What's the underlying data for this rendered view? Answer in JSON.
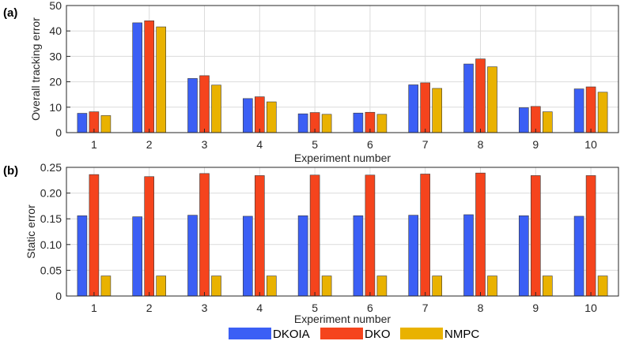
{
  "colors": {
    "DKOIA": "#3b5ff5",
    "DKO": "#f5441d",
    "NMPC": "#e9b200"
  },
  "legend": [
    "DKOIA",
    "DKO",
    "NMPC"
  ],
  "chart_data": [
    {
      "type": "bar",
      "panel_label": "(a)",
      "categories": [
        "1",
        "2",
        "3",
        "4",
        "5",
        "6",
        "7",
        "8",
        "9",
        "10"
      ],
      "series": [
        {
          "name": "DKOIA",
          "values": [
            7.6,
            43.2,
            21.3,
            13.4,
            7.4,
            7.7,
            18.8,
            27.0,
            9.8,
            17.2
          ]
        },
        {
          "name": "DKO",
          "values": [
            8.2,
            44.0,
            22.4,
            14.1,
            7.9,
            8.0,
            19.6,
            29.0,
            10.3,
            18.0
          ]
        },
        {
          "name": "NMPC",
          "values": [
            6.7,
            41.6,
            18.7,
            12.1,
            7.2,
            7.2,
            17.4,
            25.9,
            8.2,
            15.9
          ]
        }
      ],
      "xlabel": "Experiment number",
      "ylabel": "Overall tracking error",
      "ylim": [
        0,
        50
      ],
      "yticks": [
        0,
        10,
        20,
        30,
        40,
        50
      ],
      "ytick_labels": [
        "0",
        "10",
        "20",
        "30",
        "40",
        "50"
      ],
      "grid": true
    },
    {
      "type": "bar",
      "panel_label": "(b)",
      "categories": [
        "1",
        "2",
        "3",
        "4",
        "5",
        "6",
        "7",
        "8",
        "9",
        "10"
      ],
      "series": [
        {
          "name": "DKOIA",
          "values": [
            0.156,
            0.154,
            0.157,
            0.155,
            0.156,
            0.156,
            0.157,
            0.158,
            0.156,
            0.155
          ]
        },
        {
          "name": "DKO",
          "values": [
            0.236,
            0.232,
            0.238,
            0.234,
            0.235,
            0.235,
            0.237,
            0.239,
            0.234,
            0.234
          ]
        },
        {
          "name": "NMPC",
          "values": [
            0.039,
            0.039,
            0.039,
            0.039,
            0.039,
            0.039,
            0.039,
            0.039,
            0.039,
            0.039
          ]
        }
      ],
      "xlabel": "Experiment number",
      "ylabel": "Static error",
      "ylim": [
        0,
        0.25
      ],
      "yticks": [
        0,
        0.05,
        0.1,
        0.15,
        0.2,
        0.25
      ],
      "ytick_labels": [
        "0",
        "0.05",
        "0.10",
        "0.15",
        "0.20",
        "0.25"
      ],
      "grid": true
    }
  ]
}
